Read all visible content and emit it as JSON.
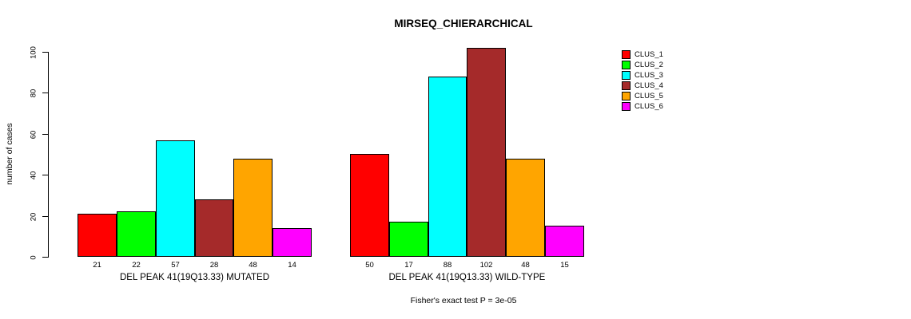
{
  "title": "MIRSEQ_CHIERARCHICAL",
  "subtitle": "Fisher's exact test P = 3e-05",
  "ylabel": "number of cases",
  "chart_data": {
    "type": "bar",
    "title": "MIRSEQ_CHIERARCHICAL",
    "xlabel": "",
    "ylabel": "number of cases",
    "annotation": "Fisher's exact test P = 3e-05",
    "ylim": [
      0,
      100
    ],
    "yticks": [
      0,
      20,
      40,
      60,
      80,
      100
    ],
    "grid": false,
    "legend_position": "top-right",
    "categories": [
      "CLUS_1",
      "CLUS_2",
      "CLUS_3",
      "CLUS_4",
      "CLUS_5",
      "CLUS_6"
    ],
    "colors": [
      "#FF0000",
      "#00FF00",
      "#00FFFF",
      "#A52A2A",
      "#FFA500",
      "#FF00FF"
    ],
    "bar_border_color": "#000000",
    "series": [
      {
        "name": "DEL PEAK 41(19Q13.33) MUTATED",
        "values": [
          21,
          22,
          57,
          28,
          48,
          14
        ]
      },
      {
        "name": "DEL PEAK 41(19Q13.33) WILD-TYPE",
        "values": [
          50,
          17,
          88,
          102,
          48,
          15
        ]
      }
    ]
  }
}
